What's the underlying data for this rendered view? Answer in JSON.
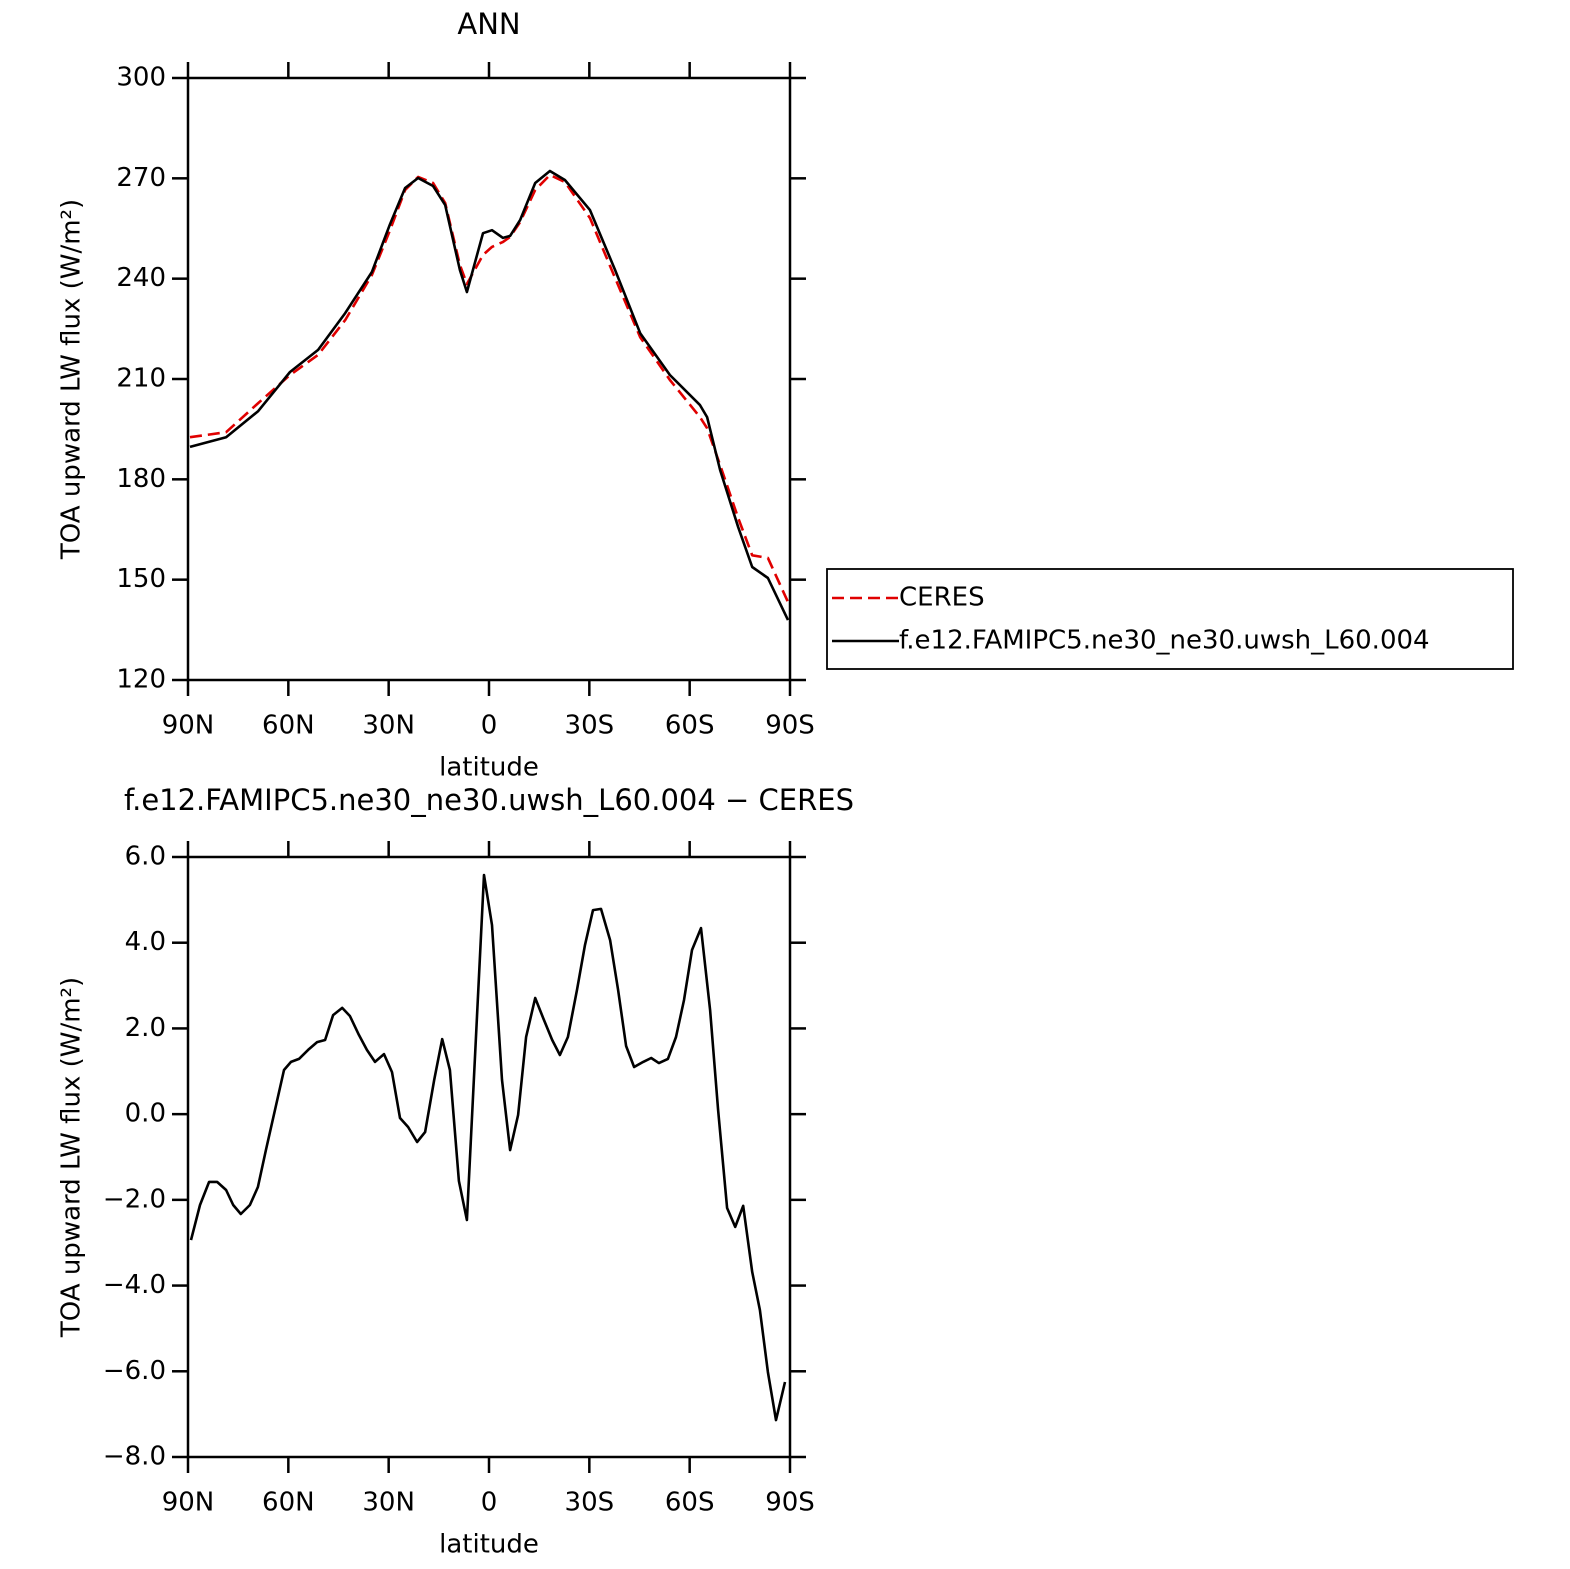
{
  "chart_data": [
    {
      "type": "line",
      "title": "ANN",
      "xlabel": "latitude",
      "ylabel": "TOA upward LW flux (W/m²)",
      "x": [
        89.4,
        78.6,
        69,
        59.5,
        51.1,
        43,
        35,
        29.6,
        25.1,
        21.2,
        16.7,
        13.1,
        8.7,
        6.6,
        1.8,
        -0.9,
        -4.2,
        -6.3,
        -9.3,
        -13.8,
        -18.2,
        -22.7,
        -30.2,
        -37.7,
        -45.2,
        -54.1,
        -63.1,
        -65.2,
        -69.1,
        -74.5,
        -78.7,
        -83.4,
        -89.4
      ],
      "series": [
        {
          "name": "CERES",
          "color": "#e00000",
          "dash": true,
          "values": [
            192.6,
            194.1,
            202.8,
            211.2,
            217.2,
            227.6,
            241.1,
            254.5,
            266.5,
            270.4,
            268.6,
            262.6,
            244.1,
            238.4,
            247.1,
            249.5,
            251,
            252.5,
            256.9,
            266.5,
            271,
            268.9,
            258.1,
            240.2,
            222.5,
            209.7,
            198.6,
            195.3,
            184.3,
            168.4,
            157.3,
            156.5,
            143.3
          ]
        },
        {
          "name": "f.e12.FAMIPC5.ne30_ne30.uwsh_L60.004",
          "color": "#000000",
          "dash": false,
          "values": [
            189.7,
            192.6,
            200.4,
            212.1,
            218.7,
            229.7,
            242,
            256.3,
            267.1,
            270.1,
            267.7,
            262,
            242.6,
            236,
            253.6,
            254.5,
            252.2,
            252.8,
            257.5,
            268.6,
            272.2,
            269.5,
            260.5,
            242.6,
            223.7,
            211.2,
            202.2,
            198.6,
            182.8,
            165.7,
            153.8,
            150.5,
            137.9
          ]
        }
      ],
      "xlim": [
        90,
        -90
      ],
      "xticks": [
        {
          "value": 90,
          "label": "90N"
        },
        {
          "value": 60,
          "label": "60N"
        },
        {
          "value": 30,
          "label": "30N"
        },
        0,
        {
          "value": -30,
          "label": "30S"
        },
        {
          "value": -60,
          "label": "60S"
        },
        {
          "value": -90,
          "label": "90S"
        }
      ],
      "ylim": [
        120,
        300
      ],
      "yticks": [
        120,
        150,
        180,
        210,
        240,
        270,
        300
      ],
      "legend": "right"
    },
    {
      "type": "line",
      "title": "f.e12.FAMIPC5.ne30_ne30.uwsh_L60.004 − CERES",
      "xlabel": "latitude",
      "ylabel": "TOA upward LW flux (W/m²)",
      "x": [
        89.1,
        86.4,
        83.7,
        81.3,
        78.6,
        76.5,
        74.2,
        71.5,
        69.1,
        66.7,
        64,
        61.3,
        59.2,
        56.8,
        54.1,
        51.4,
        49,
        46.6,
        43.9,
        41.6,
        38.9,
        36.5,
        34.1,
        31.4,
        29,
        26.6,
        24.2,
        21.5,
        19.1,
        16.4,
        14,
        11.7,
        9,
        6.6,
        1.5,
        -0.9,
        -3.9,
        -6.3,
        -8.7,
        -11.1,
        -13.8,
        -16.2,
        -18.9,
        -21.2,
        -23.6,
        -26.3,
        -28.7,
        -31.1,
        -33.5,
        -36.2,
        -38.6,
        -41,
        -43.4,
        -46.1,
        -48.5,
        -50.8,
        -53.5,
        -55.9,
        -58.3,
        -60.7,
        -63.4,
        -66.1,
        -68.5,
        -71.2,
        -73.6,
        -76,
        -78.7,
        -81,
        -83.4,
        -85.8,
        -88.5
      ],
      "series": [
        {
          "color": "#000000",
          "dash": false,
          "values": [
            -2.94,
            -2.12,
            -1.58,
            -1.58,
            -1.77,
            -2.12,
            -2.33,
            -2.12,
            -1.7,
            -0.84,
            0.1,
            1.03,
            1.22,
            1.29,
            1.5,
            1.68,
            1.73,
            2.31,
            2.48,
            2.29,
            1.85,
            1.5,
            1.22,
            1.4,
            0.98,
            -0.09,
            -0.3,
            -0.65,
            -0.42,
            0.8,
            1.75,
            1.03,
            -1.56,
            -2.47,
            5.58,
            4.41,
            0.8,
            -0.84,
            -0.02,
            1.8,
            2.71,
            2.24,
            1.73,
            1.38,
            1.8,
            2.9,
            3.95,
            4.76,
            4.79,
            4.06,
            2.9,
            1.59,
            1.1,
            1.22,
            1.31,
            1.19,
            1.29,
            1.8,
            2.66,
            3.83,
            4.34,
            2.43,
            0.1,
            -2.19,
            -2.63,
            -2.14,
            -3.68,
            -4.57,
            -6.02,
            -7.14,
            -6.25
          ]
        }
      ],
      "xlim": [
        90,
        -90
      ],
      "xticks": [
        {
          "value": 90,
          "label": "90N"
        },
        {
          "value": 60,
          "label": "60N"
        },
        {
          "value": 30,
          "label": "30N"
        },
        0,
        {
          "value": -30,
          "label": "30S"
        },
        {
          "value": -60,
          "label": "60S"
        },
        {
          "value": -90,
          "label": "90S"
        }
      ],
      "ylim": [
        -8,
        6
      ],
      "yticks": [
        {
          "value": -8,
          "label": "−8.0"
        },
        {
          "value": -6,
          "label": "−6.0"
        },
        {
          "value": -4,
          "label": "−4.0"
        },
        {
          "value": -2,
          "label": "−2.0"
        },
        {
          "value": 0,
          "label": "0.0"
        },
        {
          "value": 2,
          "label": "2.0"
        },
        {
          "value": 4,
          "label": "4.0"
        },
        {
          "value": 6,
          "label": "6.0"
        }
      ]
    }
  ]
}
